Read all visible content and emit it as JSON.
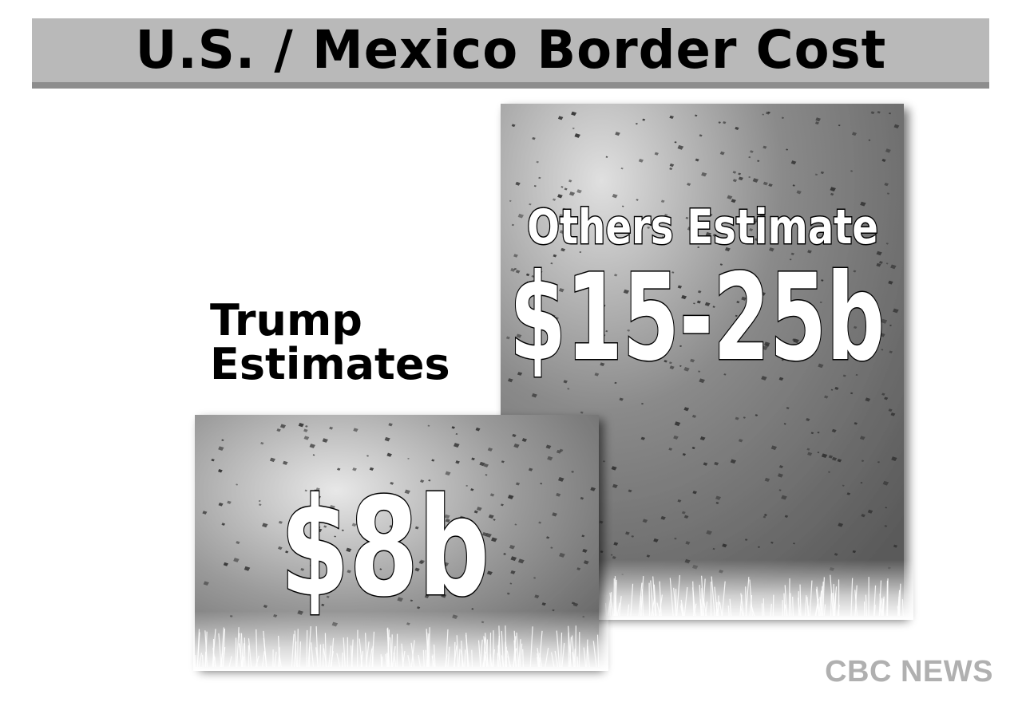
{
  "title": "U.S. / Mexico Border Cost",
  "source": "CBC NEWS",
  "chart_data": {
    "type": "bar",
    "title": "U.S. / Mexico Border Cost",
    "unit": "b",
    "categories": [
      "Trump Estimates",
      "Others Estimate"
    ],
    "series": [
      {
        "values": [
          8,
          25
        ],
        "ranges": [
          [
            8,
            8
          ],
          [
            15,
            25
          ]
        ]
      }
    ],
    "labels": {
      "trump": {
        "line1": "Trump",
        "line2": "Estimates",
        "value": "$8b"
      },
      "others": {
        "line1": "Others Estimate",
        "value": "$15-25b"
      }
    },
    "colors": {
      "bar": "#6b6b6b",
      "bar_light": "#c8c8c8",
      "speckle": "#2e2e2e"
    }
  }
}
